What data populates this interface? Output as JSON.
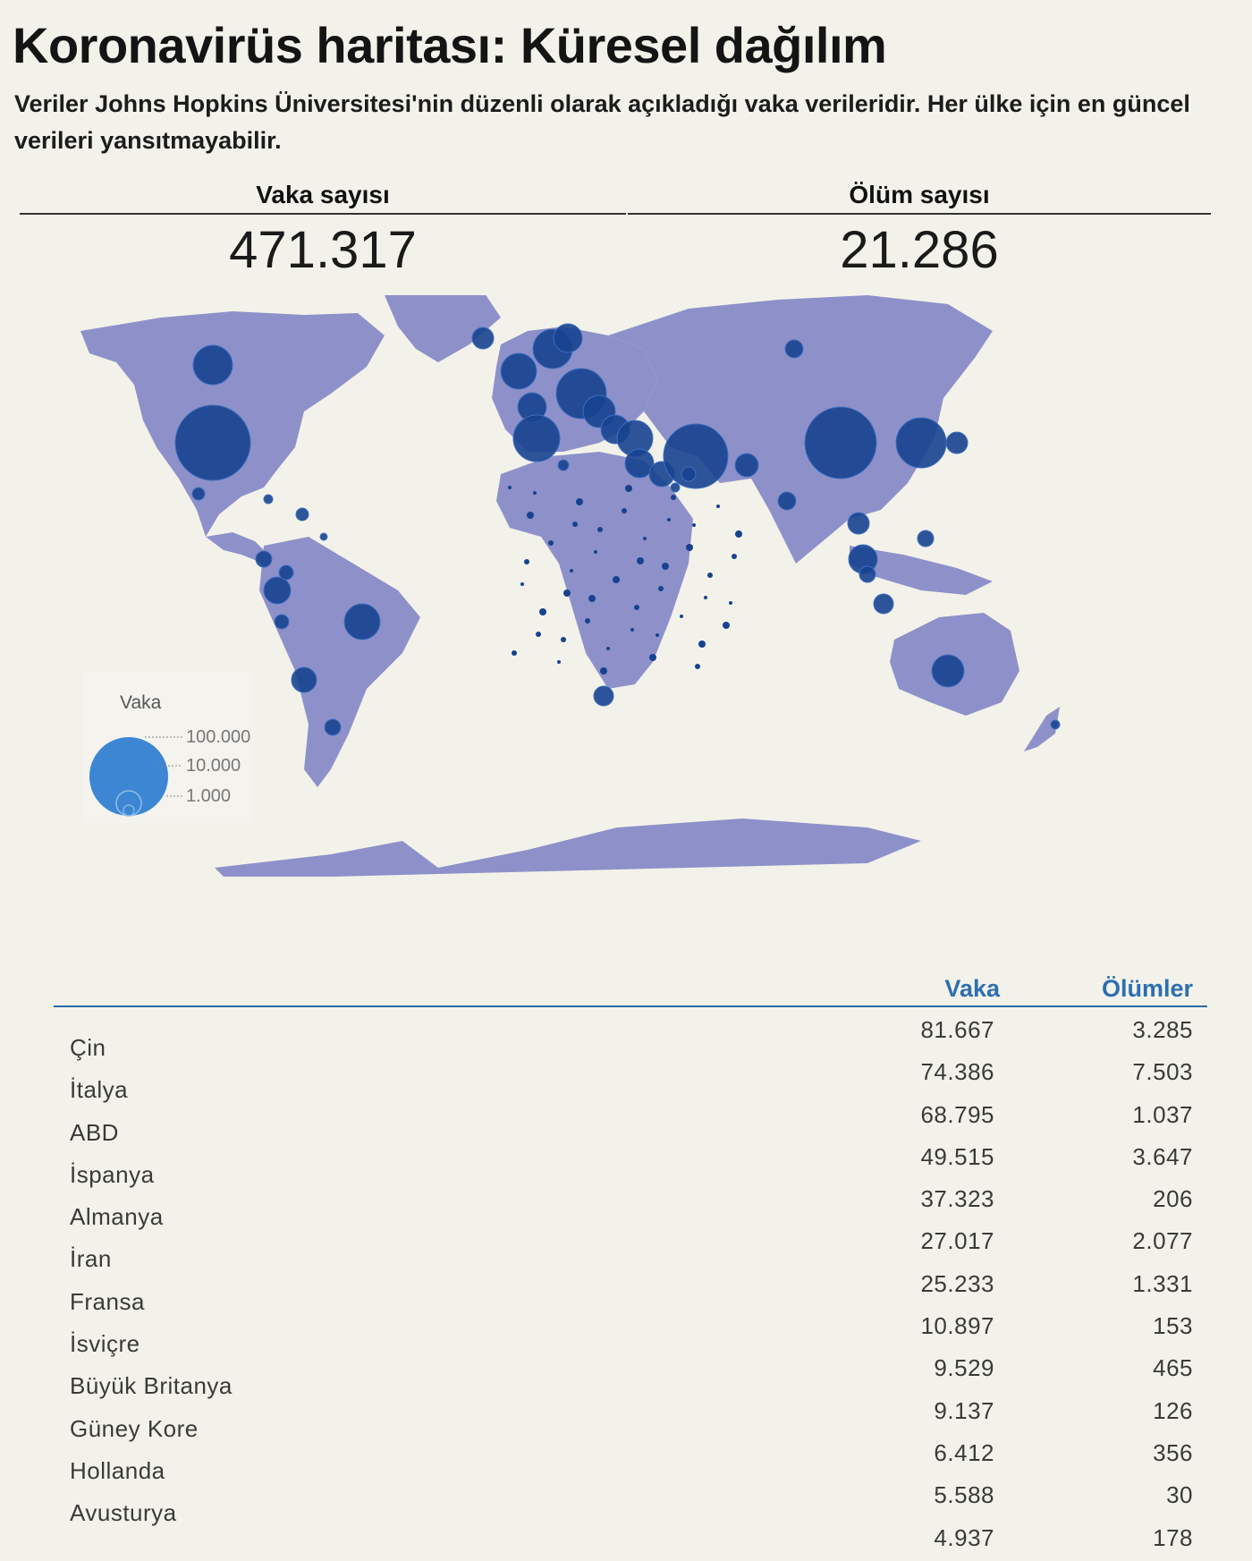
{
  "header": {
    "title": "Koronavirüs haritası: Küresel dağılım",
    "subtitle": "Veriler Johns Hopkins Üniversitesi'nin düzenli olarak açıkladığı vaka verileridir. Her ülke için en güncel verileri yansıtmayabilir."
  },
  "stats": {
    "cases_label": "Vaka sayısı",
    "cases_value": "471.317",
    "deaths_label": "Ölüm sayısı",
    "deaths_value": "21.286"
  },
  "map": {
    "land_color": "#8e91c9",
    "bubble_color": "#17428f",
    "legend": {
      "title": "Vaka",
      "ticks": [
        "100.000",
        "10.000",
        "1.000"
      ],
      "color": "#3d86d4"
    }
  },
  "table": {
    "header_cases": "Vaka",
    "header_deaths": "Ölümler",
    "rows": [
      {
        "country": "Çin",
        "cases": "81.667",
        "deaths": "3.285"
      },
      {
        "country": "İtalya",
        "cases": "74.386",
        "deaths": "7.503"
      },
      {
        "country": "ABD",
        "cases": "68.795",
        "deaths": "1.037"
      },
      {
        "country": "İspanya",
        "cases": "49.515",
        "deaths": "3.647"
      },
      {
        "country": "Almanya",
        "cases": "37.323",
        "deaths": "206"
      },
      {
        "country": "İran",
        "cases": "27.017",
        "deaths": "2.077"
      },
      {
        "country": "Fransa",
        "cases": "25.233",
        "deaths": "1.331"
      },
      {
        "country": "İsviçre",
        "cases": "10.897",
        "deaths": "153"
      },
      {
        "country": "Büyük Britanya",
        "cases": "9.529",
        "deaths": "465"
      },
      {
        "country": "Güney Kore",
        "cases": "9.137",
        "deaths": "126"
      },
      {
        "country": "Hollanda",
        "cases": "6.412",
        "deaths": "356"
      },
      {
        "country": "Avusturya",
        "cases": "5.588",
        "deaths": "30"
      },
      {
        "country": "",
        "cases": "4.937",
        "deaths": "178"
      }
    ]
  }
}
